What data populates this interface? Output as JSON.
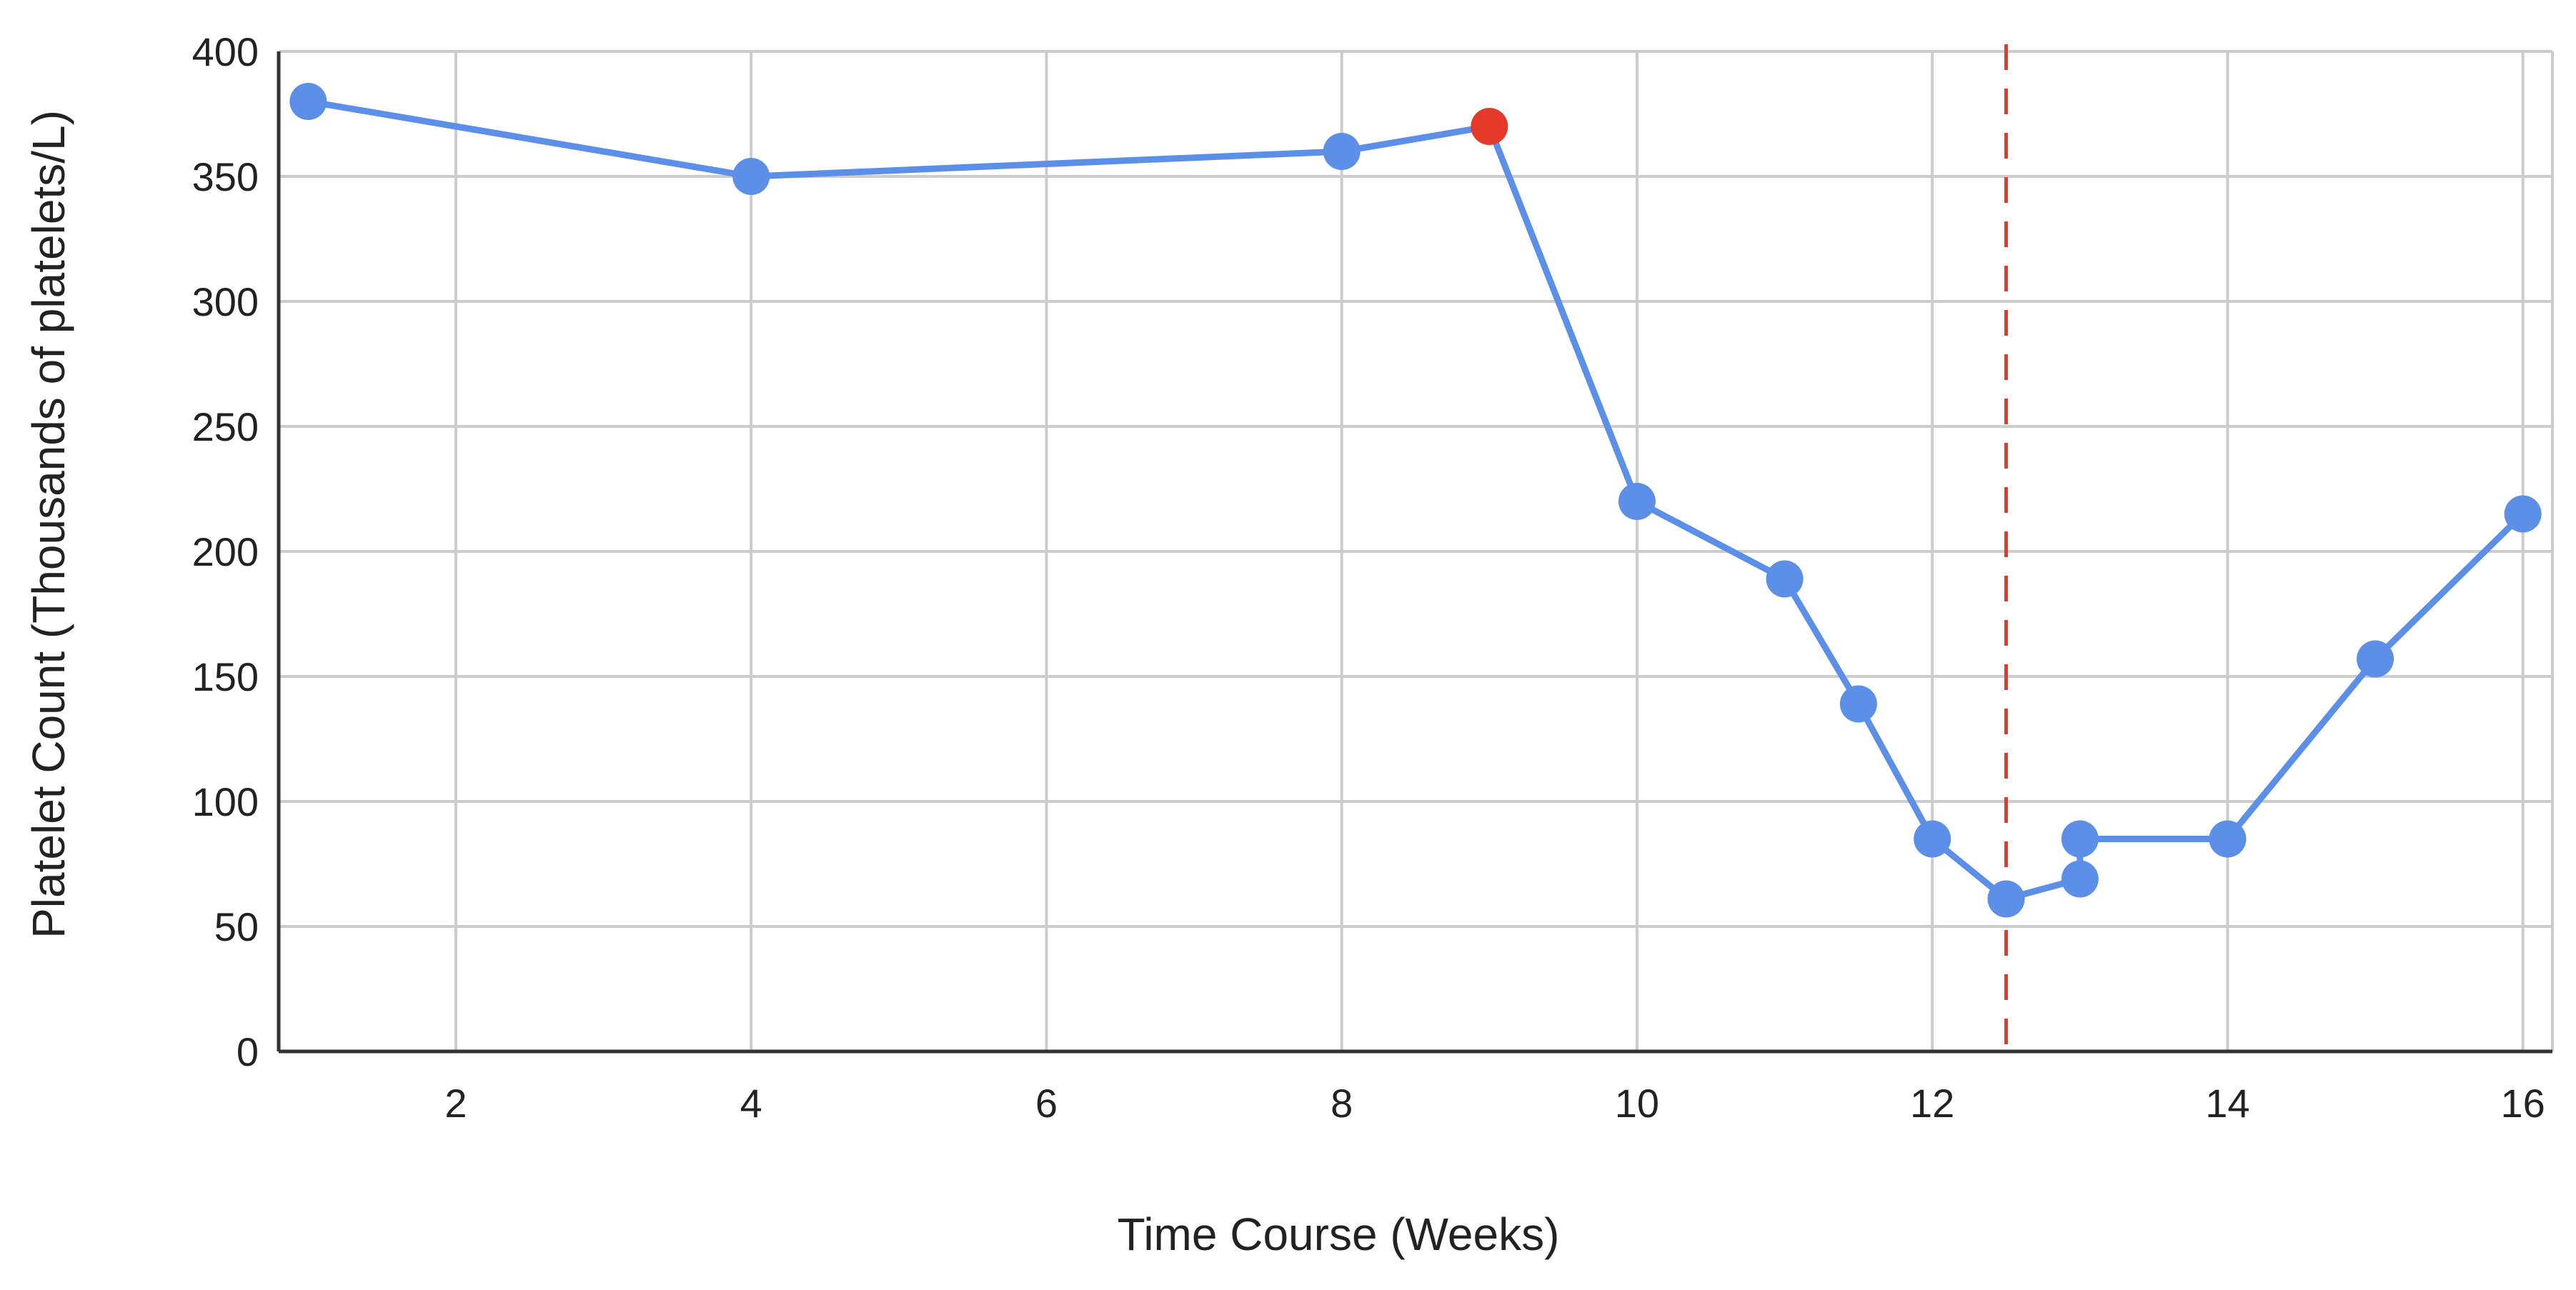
{
  "chart_data": {
    "type": "line",
    "title": "",
    "xlabel": "Time Course (Weeks)",
    "ylabel": "Platelet Count (Thousands of platelets/L)",
    "xlim": [
      0.8,
      16.2
    ],
    "ylim": [
      0,
      400
    ],
    "x_ticks": [
      2,
      4,
      6,
      8,
      10,
      12,
      14,
      16
    ],
    "y_ticks": [
      0,
      50,
      100,
      150,
      200,
      250,
      300,
      350,
      400
    ],
    "grid": true,
    "legend": "none",
    "series": [
      {
        "color": "#5b8fe8",
        "x": [
          1,
          4,
          8,
          9,
          10,
          11,
          11.5,
          12,
          12.5,
          13,
          13,
          14,
          15,
          16
        ],
        "y": [
          380,
          350,
          360,
          370,
          220,
          189,
          139,
          85,
          61,
          69,
          85,
          85,
          157,
          215
        ],
        "highlight_index": 3,
        "highlight_color": "#e53a2a"
      }
    ],
    "reference_line": {
      "orientation": "vertical",
      "x": 12.5,
      "style": "dashed",
      "color": "#e53a2a"
    }
  }
}
